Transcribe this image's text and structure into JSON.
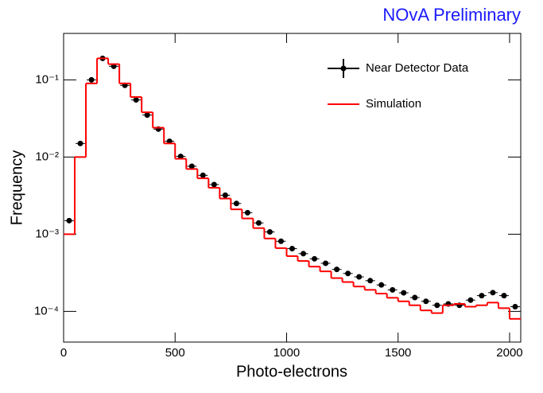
{
  "chart_data": {
    "type": "histogram",
    "title": "NOvA Preliminary",
    "title_color": "#1a1aff",
    "x_label": "Photo-electrons",
    "y_label": "Frequency",
    "bins": [
      0,
      50,
      100,
      150,
      200,
      250,
      300,
      350,
      400,
      450,
      500,
      550,
      600,
      650,
      700,
      750,
      800,
      850,
      900,
      950,
      1000,
      1050,
      1100,
      1150,
      1200,
      1250,
      1300,
      1350,
      1400,
      1450,
      1500,
      1550,
      1600,
      1650,
      1700,
      1750,
      1800,
      1850,
      1900,
      1950,
      2000,
      2050
    ],
    "series": [
      {
        "name": "Near Detector Data",
        "color": "#000000",
        "style": "points",
        "values": [
          0.0015,
          0.015,
          0.1,
          0.19,
          0.15,
          0.085,
          0.055,
          0.035,
          0.023,
          0.016,
          0.0102,
          0.0076,
          0.0058,
          0.0044,
          0.0032,
          0.0025,
          0.0019,
          0.0014,
          0.00107,
          0.00081,
          0.00065,
          0.00056,
          0.00048,
          0.00042,
          0.00035,
          0.00031,
          0.00028,
          0.00025,
          0.00022,
          0.00019,
          0.000174,
          0.000151,
          0.000135,
          0.00012,
          0.000125,
          0.00012,
          0.00014,
          0.00016,
          0.000175,
          0.00016,
          0.000115
        ]
      },
      {
        "name": "Simulation",
        "color": "#ff0000",
        "style": "step",
        "values": [
          0.001,
          0.01,
          0.09,
          0.19,
          0.16,
          0.09,
          0.06,
          0.038,
          0.024,
          0.015,
          0.0095,
          0.007,
          0.0053,
          0.004,
          0.0029,
          0.0021,
          0.0016,
          0.0012,
          0.00088,
          0.00066,
          0.00052,
          0.00045,
          0.00038,
          0.00033,
          0.00027,
          0.00024,
          0.00021,
          0.00019,
          0.00017,
          0.00015,
          0.000135,
          0.00012,
          0.000103,
          9.5e-05,
          0.00012,
          0.000125,
          0.000115,
          0.00012,
          0.00013,
          0.00011,
          8e-05
        ]
      }
    ],
    "xlim": [
      0,
      2050
    ],
    "xticks": [
      0,
      500,
      1000,
      1500,
      2000
    ],
    "ylim": [
      4e-05,
      0.4
    ],
    "log_y": true,
    "yticks": [
      {
        "value": 0.1,
        "label": "10⁻¹"
      },
      {
        "value": 0.01,
        "label": "10⁻²"
      },
      {
        "value": 0.001,
        "label": "10⁻³"
      },
      {
        "value": 0.0001,
        "label": "10⁻⁴"
      }
    ],
    "legend": "upper right"
  }
}
